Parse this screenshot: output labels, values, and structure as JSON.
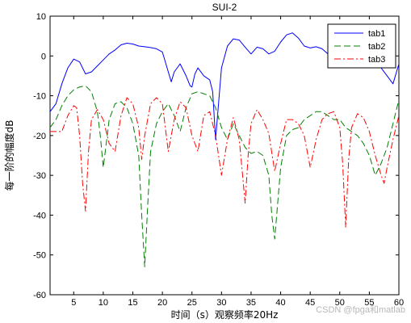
{
  "chart_data": {
    "type": "line",
    "title": "SUI-2",
    "xlabel": "时间（s）观察频率20Hz",
    "ylabel": "每一阶的幅度dB",
    "xlim": [
      1,
      60
    ],
    "ylim": [
      -60,
      10
    ],
    "xticks": [
      5,
      10,
      15,
      20,
      25,
      30,
      35,
      40,
      45,
      50,
      55,
      60
    ],
    "yticks": [
      10,
      0,
      -10,
      -20,
      -30,
      -40,
      -50,
      -60
    ],
    "grid": false,
    "legend_position": "top-right",
    "series": [
      {
        "name": "tab1",
        "color": "#0000ff",
        "dash": "solid",
        "x": [
          1,
          2,
          3,
          4,
          5,
          6,
          7,
          8,
          9,
          10,
          11,
          12,
          13,
          14,
          15,
          16,
          17,
          18,
          19,
          20,
          21,
          21.5,
          22,
          23,
          24,
          24.7,
          25,
          25.5,
          26,
          27,
          28,
          28.5,
          29,
          30,
          31,
          32,
          33,
          34,
          35,
          36,
          37,
          38,
          39,
          40,
          41,
          42,
          43,
          44,
          45,
          46,
          47,
          48,
          49,
          50,
          51,
          52,
          53,
          54,
          55,
          56,
          57,
          58,
          59,
          60
        ],
        "y": [
          -14,
          -12,
          -7,
          -3,
          -0.8,
          -1.5,
          -4.5,
          -4,
          -2.5,
          -1,
          0.5,
          1.5,
          2.8,
          3.2,
          3,
          2.5,
          2.3,
          2.1,
          1.8,
          1,
          -4,
          -6.5,
          -4,
          -2,
          -5,
          -7.5,
          -7.8,
          -4.5,
          -3,
          -5,
          -6,
          -9,
          -21,
          -3,
          2.5,
          4.3,
          4,
          2.2,
          0.5,
          2.2,
          1.8,
          0.5,
          1.2,
          3.5,
          5.3,
          5.8,
          4.5,
          2.5,
          2,
          2.3,
          1.8,
          0.5,
          0.3,
          1,
          1.3,
          1,
          0.6,
          0.3,
          0.2,
          -1,
          -3,
          -5,
          -7,
          -2
        ]
      },
      {
        "name": "tab2",
        "color": "#008000",
        "dash": "8,4",
        "x": [
          1,
          2,
          3,
          4,
          5,
          6,
          7,
          8,
          9,
          9.5,
          10,
          10.5,
          11,
          12,
          13,
          14,
          15,
          16,
          16.5,
          17,
          17.5,
          18,
          19,
          20,
          21,
          22,
          23,
          24,
          25,
          26,
          27,
          28,
          29,
          30,
          31,
          32,
          33,
          34,
          35,
          36,
          37,
          38,
          38.5,
          39,
          40,
          41,
          42,
          43,
          44,
          45,
          46,
          47,
          48,
          49,
          50,
          51,
          52,
          53,
          54,
          55,
          56,
          57,
          58,
          59,
          60
        ],
        "y": [
          -18,
          -16,
          -12.5,
          -10,
          -8.5,
          -7.8,
          -7.5,
          -9,
          -14,
          -20,
          -28,
          -22,
          -16,
          -12,
          -11.5,
          -13,
          -17,
          -25,
          -40,
          -53,
          -38,
          -24,
          -17,
          -14,
          -12,
          -15,
          -19,
          -13,
          -9.5,
          -9,
          -9.5,
          -10,
          -13,
          -18,
          -21,
          -17,
          -20,
          -23,
          -24.5,
          -24,
          -25,
          -30,
          -40,
          -46,
          -28,
          -20,
          -18.5,
          -18,
          -16,
          -15,
          -14,
          -14,
          -15,
          -16,
          -16,
          -18,
          -19,
          -20,
          -22,
          -25,
          -30,
          -27,
          -23,
          -17,
          -11
        ]
      },
      {
        "name": "tab3",
        "color": "#ff0000",
        "dash": "8,3,2,3",
        "x": [
          1,
          2,
          3,
          4,
          5,
          5.5,
          6,
          6.5,
          7,
          7.5,
          8,
          9,
          10,
          11,
          12,
          13,
          14,
          15,
          16,
          16.5,
          17,
          18,
          19,
          20,
          21,
          22,
          23,
          24,
          25,
          26,
          27,
          28,
          29,
          30,
          31,
          32,
          33,
          33.5,
          34,
          34.5,
          35,
          36,
          37,
          38,
          39,
          40,
          41,
          42,
          43,
          44,
          45,
          46,
          47,
          48,
          49,
          50,
          50.5,
          51,
          51.5,
          52,
          53,
          54,
          55,
          56,
          57,
          57.5,
          58,
          59,
          60
        ],
        "y": [
          -19,
          -19,
          -19,
          -15,
          -12.5,
          -13,
          -20,
          -32,
          -39,
          -24,
          -16,
          -13.5,
          -16,
          -22,
          -24,
          -15,
          -10.5,
          -12,
          -18,
          -26,
          -20,
          -12,
          -10.5,
          -12,
          -24,
          -16,
          -11.5,
          -13,
          -20,
          -24,
          -15,
          -14,
          -20,
          -30,
          -21,
          -15.5,
          -21,
          -29,
          -37,
          -25,
          -17,
          -13.5,
          -16,
          -19.5,
          -29,
          -22,
          -16,
          -16,
          -17,
          -20,
          -28,
          -21,
          -16,
          -14.5,
          -14,
          -18,
          -27,
          -43,
          -26,
          -18,
          -14.5,
          -15.5,
          -19,
          -25,
          -30,
          -32,
          -28,
          -21,
          -15
        ]
      }
    ]
  },
  "watermark": "CSDN @fpga和matlab"
}
